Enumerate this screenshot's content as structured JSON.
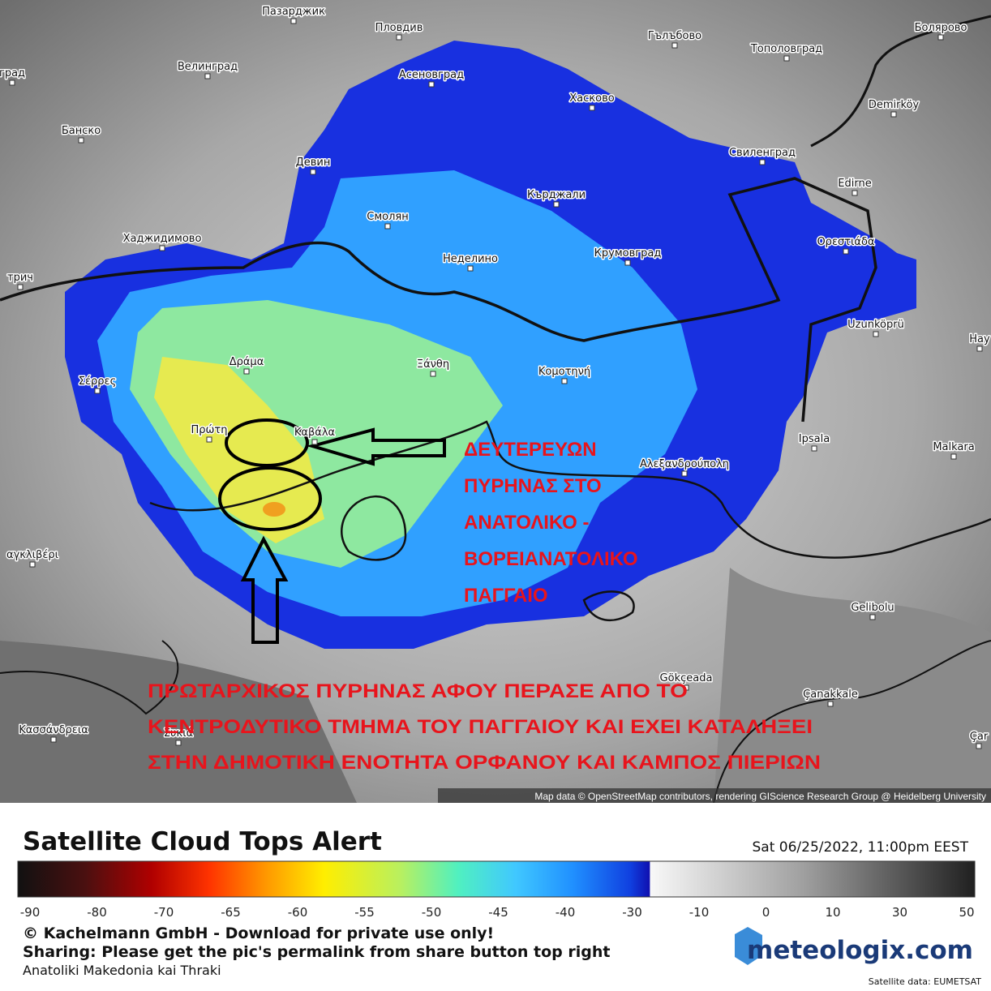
{
  "map": {
    "places": [
      "Пазарджик",
      "Пловдив",
      "Гълъбово",
      "Болярово",
      "Велинград",
      "Асеновград",
      "Тополовград",
      "град",
      "Хасково",
      "Demirköy",
      "Банско",
      "Девин",
      "Свиленград",
      "Edirne",
      "Кърджали",
      "Смолян",
      "Хаджидимово",
      "Ορεστιάδα",
      "Неделино",
      "Крумовград",
      "трич",
      "Uzunköprü",
      "Hay",
      "Δράμα",
      "Ξάνθη",
      "Κομοτηνή",
      "Σέρρες",
      "Πρώτη",
      "Καβάλα",
      "Ipsala",
      "Malkara",
      "Αλεξανδρούπολη",
      "αγκλιβέρι",
      "Gelibolu",
      "Gökçeada",
      "Çanakkale",
      "Κασσάνδρεια",
      "Συκιά",
      "Çar"
    ],
    "attribution": "Map data © OpenStreetMap contributors, rendering GIScience Research Group @ Heidelberg University"
  },
  "annotations": {
    "secondary": [
      "ΔΕΥΤΕΡΕΥΩΝ",
      "ΠΥΡΗΝΑΣ ΣΤΟ",
      "ΑΝΑΤΟΛΙΚΟ -",
      "ΒΟΡΕΙΑΝΑΤΟΛΙΚΟ",
      "ΠΑΓΓΑΙΟ"
    ],
    "primary": [
      "ΠΡΩΤΑΡΧΙΚΟΣ ΠΥΡΗΝΑΣ ΑΦΟΥ ΠΕΡΑΣΕ  ΑΠΟ ΤΟ",
      "ΚΕΝΤΡΟΔΥΤΙΚΟ ΤΜΗΜΑ ΤΟΥ ΠΑΓΓΑΙΟΥ ΚΑΙ ΕΧΕΙ ΚΑΤΑΛΗΞΕΙ",
      "ΣΤΗΝ ΔΗΜΟΤΙΚΗ ΕΝΟΤΗΤΑ ΟΡΦΑΝΟΥ ΚΑΙ ΚΑΜΠΟΣ ΠΙΕΡΙΩΝ"
    ]
  },
  "legend": {
    "title": "Satellite Cloud Tops Alert",
    "timestamp": "Sat 06/25/2022, 11:00pm EEST",
    "ticks": [
      -90,
      -80,
      -70,
      -65,
      -60,
      -55,
      -50,
      -45,
      -40,
      -30,
      -10,
      0,
      10,
      30,
      50
    ]
  },
  "footer": {
    "copyright": "© Kachelmann GmbH - Download for private use only!",
    "sharing": "Sharing: Please get the pic's permalink from share button top right",
    "region": "Anatoliki Makedonia kai Thraki",
    "brand": "meteologix.com",
    "source": "Satellite data: EUMETSAT"
  }
}
